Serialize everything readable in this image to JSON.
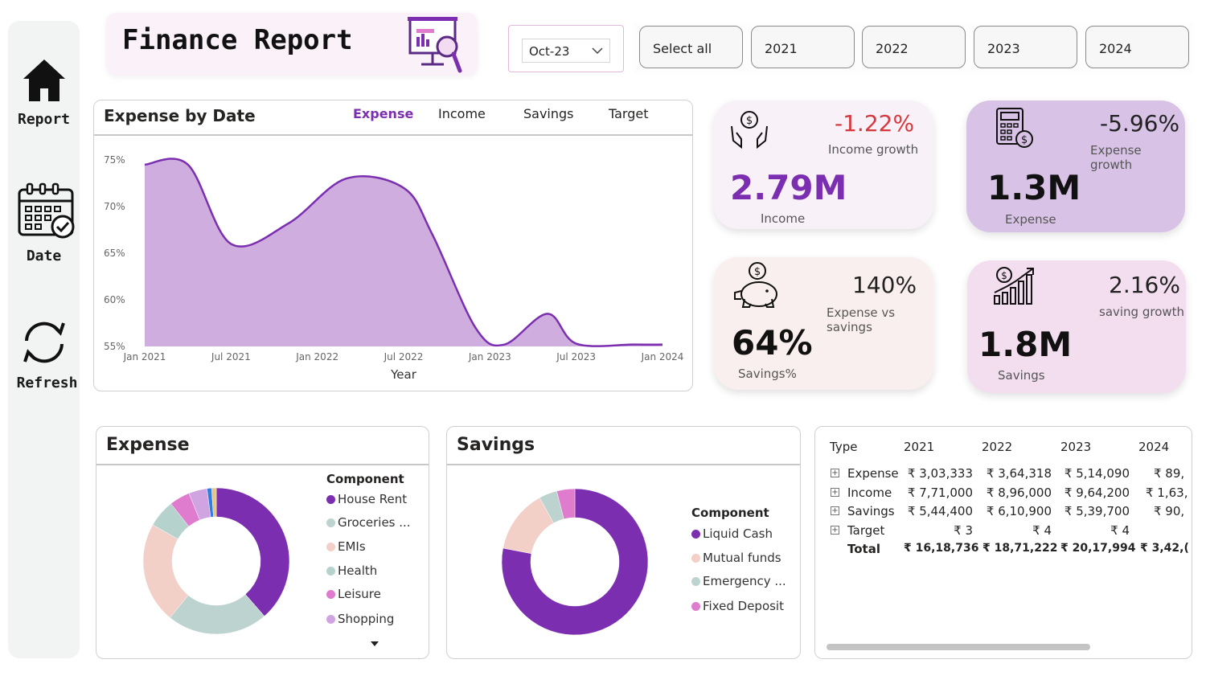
{
  "nav": {
    "items": [
      {
        "label": "Report",
        "icon": "home-icon"
      },
      {
        "label": "Date",
        "icon": "calendar-icon"
      },
      {
        "label": "Refresh",
        "icon": "refresh-icon"
      }
    ]
  },
  "header": {
    "title": "Finance Report",
    "icon": "presentation-magnifier-icon"
  },
  "date_slicer": {
    "value": "Oct-23"
  },
  "year_slicer": {
    "options": [
      "Select all",
      "2021",
      "2022",
      "2023",
      "2024"
    ]
  },
  "line_chart": {
    "title": "Expense by Date",
    "tabs": [
      "Expense",
      "Income",
      "Savings",
      "Target"
    ],
    "active_tab": "Expense",
    "accent_color": "#7b2fb0",
    "fill_color": "#cfaedf"
  },
  "chart_data": {
    "type": "area",
    "title": "Expense by Date",
    "xlabel": "Year",
    "ylabel": "",
    "x_ticks": [
      "Jan 2021",
      "Jul 2021",
      "Jan 2022",
      "Jul 2022",
      "Jan 2023",
      "Jul 2023",
      "Jan 2024"
    ],
    "y_ticks": [
      "75%",
      "70%",
      "65%",
      "60%",
      "55%"
    ],
    "ylim": [
      55,
      75
    ],
    "x": [
      "2021-01",
      "2021-04",
      "2021-07",
      "2021-11",
      "2022-03",
      "2022-07",
      "2022-09",
      "2022-12",
      "2023-02",
      "2023-05",
      "2023-07",
      "2023-11",
      "2024-01"
    ],
    "values": [
      74.5,
      74.5,
      66.0,
      68.2,
      73.0,
      72.0,
      67.0,
      57.0,
      55.2,
      58.5,
      55.3,
      55.2,
      55.2
    ],
    "grid": false,
    "legend": "none"
  },
  "kpis": {
    "income": {
      "pct": "-1.22%",
      "sub": "Income growth",
      "value": "2.79M",
      "label": "Income",
      "icon": "money-hands-icon",
      "pct_color": "#d6383d",
      "value_color": "#7b2fb0",
      "bg": "#f8f1f8"
    },
    "expense": {
      "pct": "-5.96%",
      "sub": "Expense growth",
      "value": "1.3M",
      "label": "Expense",
      "icon": "calculator-dollar-icon",
      "bg": "#d8c3e6"
    },
    "savings_pct": {
      "pct": "140%",
      "sub": "Expense vs savings",
      "value": "64%",
      "label": "Savings%",
      "icon": "piggy-bank-icon",
      "bg": "#f9efee"
    },
    "savings": {
      "pct": "2.16%",
      "sub": "saving growth",
      "value": "1.8M",
      "label": "Savings",
      "icon": "growth-chart-icon",
      "bg": "#f3def0"
    }
  },
  "expense_donut": {
    "title": "Expense",
    "legend_title": "Component",
    "items": [
      {
        "label": "House Rent",
        "value": 38,
        "color": "#7b2fb0"
      },
      {
        "label": "Groceries ...",
        "value": 22,
        "color": "#bcd3cf"
      },
      {
        "label": "EMIs",
        "value": 22,
        "color": "#f2cfc7"
      },
      {
        "label": "Health",
        "value": 6,
        "color": "#b6d2cd"
      },
      {
        "label": "Leisure",
        "value": 4.5,
        "color": "#e07ccd"
      },
      {
        "label": "Shopping",
        "value": 4,
        "color": "#cfa4e0"
      },
      {
        "label": "",
        "value": 1,
        "color": "#2f7de0"
      },
      {
        "label": "",
        "value": 1,
        "color": "#e9c48a"
      }
    ]
  },
  "savings_donut": {
    "title": "Savings",
    "legend_title": "Component",
    "items": [
      {
        "label": "Liquid Cash",
        "value": 78,
        "color": "#7b2fb0"
      },
      {
        "label": "Mutual funds",
        "value": 14,
        "color": "#f2cfc7"
      },
      {
        "label": "Emergency ...",
        "value": 4,
        "color": "#bcd3cf"
      },
      {
        "label": "Fixed Deposit",
        "value": 4,
        "color": "#e07ccd"
      }
    ]
  },
  "table": {
    "headers": [
      "Type",
      "2021",
      "2022",
      "2023",
      "2024"
    ],
    "rows": [
      {
        "type": "Expense",
        "v": [
          "₹ 3,03,333",
          "₹ 3,64,318",
          "₹ 5,14,090",
          "₹ 89,"
        ]
      },
      {
        "type": "Income",
        "v": [
          "₹ 7,71,000",
          "₹ 8,96,000",
          "₹ 9,64,200",
          "₹ 1,63,"
        ]
      },
      {
        "type": "Savings",
        "v": [
          "₹ 5,44,400",
          "₹ 6,10,900",
          "₹ 5,39,700",
          "₹ 90,"
        ]
      },
      {
        "type": "Target",
        "v": [
          "₹ 3",
          "₹ 4",
          "₹ 4",
          ""
        ]
      }
    ],
    "total": {
      "label": "Total",
      "v": [
        "₹ 16,18,736",
        "₹ 18,71,222",
        "₹ 20,17,994",
        "₹ 3,42,("
      ]
    }
  }
}
